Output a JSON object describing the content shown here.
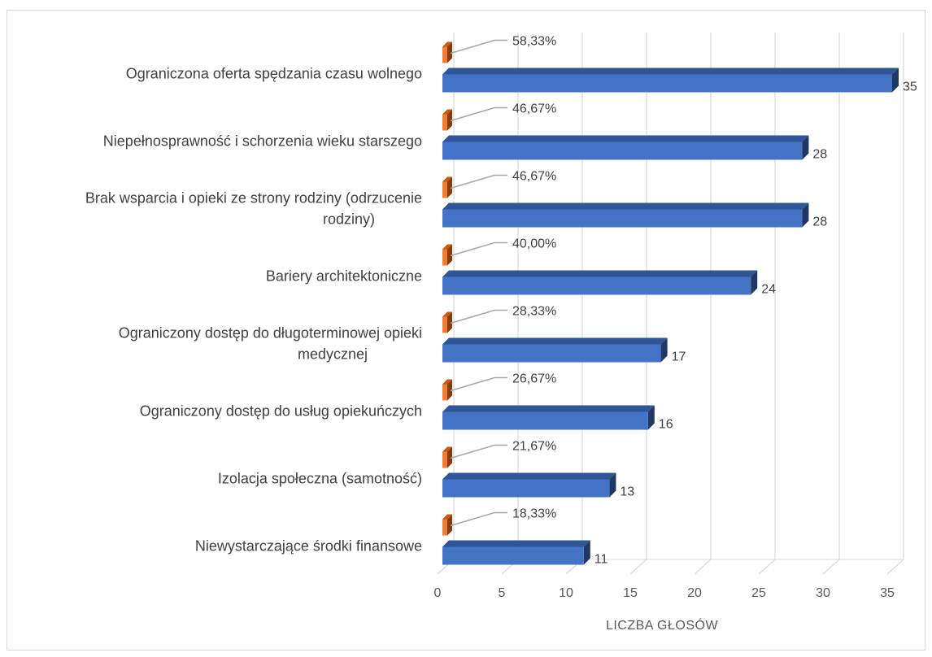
{
  "chart_data": {
    "type": "bar",
    "orientation": "horizontal",
    "categories": [
      [
        "Ograniczona oferta spędzania czasu wolnego"
      ],
      [
        "Niepełnosprawność i schorzenia wieku starszego"
      ],
      [
        "Brak wsparcia i opieki ze strony rodziny (odrzucenie",
        "rodziny)"
      ],
      [
        "Bariery architektoniczne"
      ],
      [
        "Ograniczony dostęp do długoterminowej opieki",
        "medycznej"
      ],
      [
        "Ograniczony dostęp do usług opiekuńczych"
      ],
      [
        "Izolacja społeczna (samotność)"
      ],
      [
        "Niewystarczające środki finansowe"
      ]
    ],
    "series": [
      {
        "values": [
          35,
          28,
          28,
          24,
          17,
          16,
          13,
          11
        ],
        "color": "#4472c4"
      },
      {
        "values": [
          0.5833,
          0.4667,
          0.4667,
          0.4,
          0.2833,
          0.2667,
          0.2167,
          0.1833
        ],
        "labels": [
          "58,33%",
          "46,67%",
          "46,67%",
          "40,00%",
          "28,33%",
          "26,67%",
          "21,67%",
          "18,33%"
        ],
        "color": "#ed7d31"
      }
    ],
    "xlabel": "LICZBA GŁOSÓW",
    "xticks": [
      "0",
      "5",
      "10",
      "15",
      "20",
      "25",
      "30",
      "35"
    ],
    "xlim": [
      0,
      35
    ],
    "grid": true
  }
}
